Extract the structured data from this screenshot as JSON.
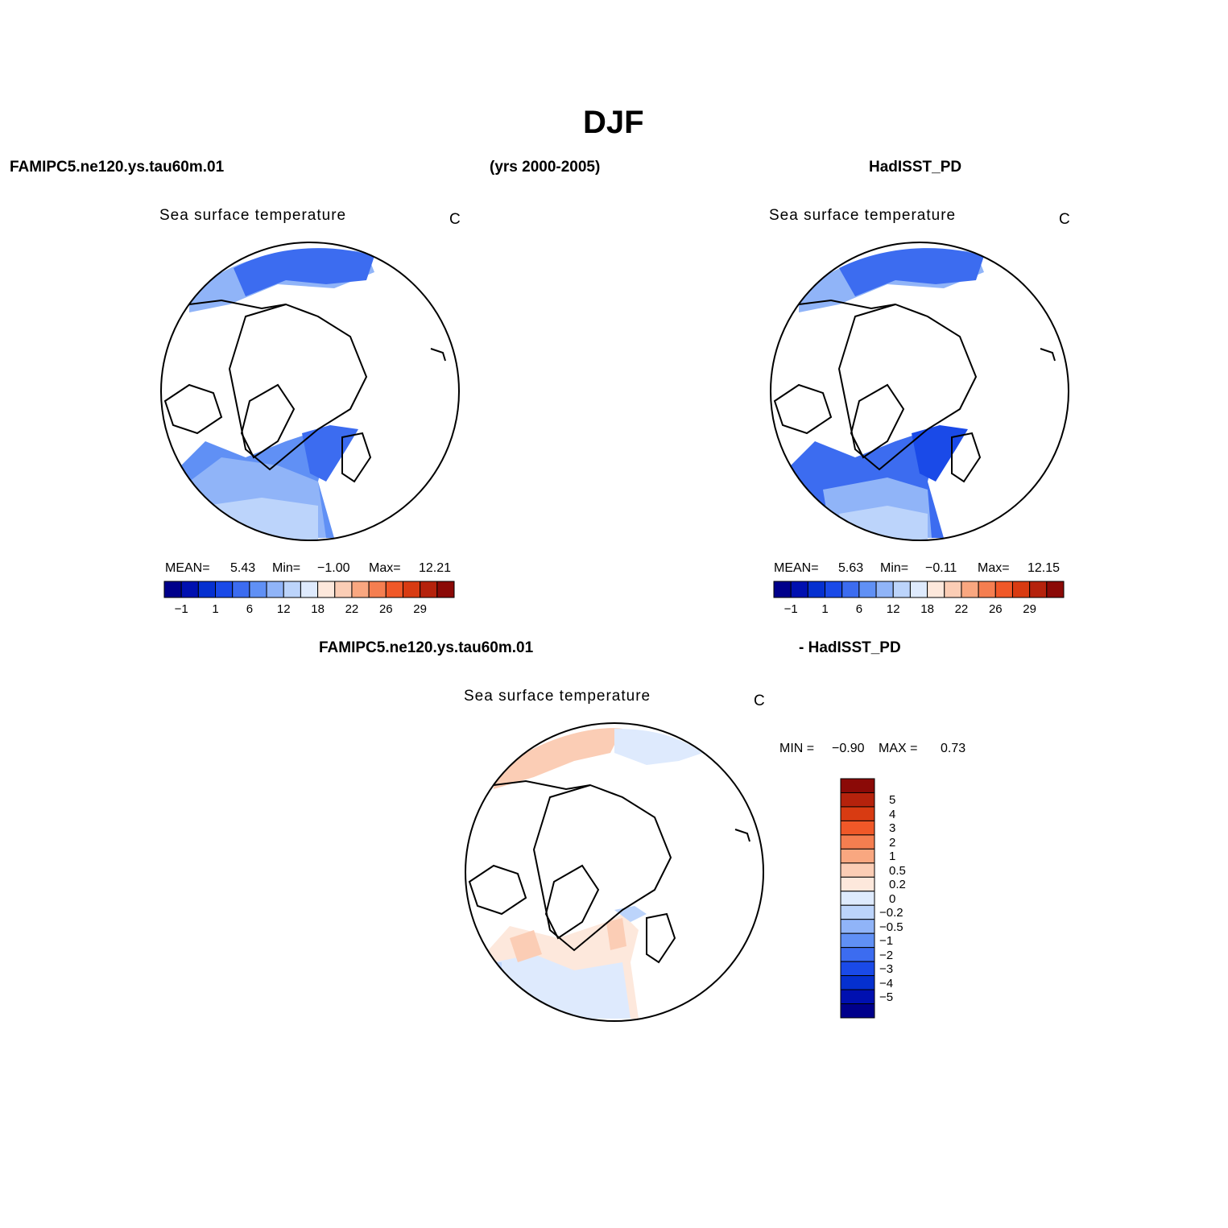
{
  "figure": {
    "title": "DJF",
    "header_left": "FAMIPC5.ne120.ys.tau60m.01",
    "header_center": "(yrs 2000-2005)",
    "header_right": "HadISST_PD",
    "diff_header_left": "FAMIPC5.ne120.ys.tau60m.01",
    "diff_header_right": "- HadISST_PD"
  },
  "panels": [
    {
      "title": "Sea surface temperature",
      "unit": "C",
      "stats": {
        "mean_label": "MEAN=",
        "mean": "5.43",
        "min_label": "Min=",
        "min": "−1.00",
        "max_label": "Max=",
        "max": "12.21"
      }
    },
    {
      "title": "Sea surface temperature",
      "unit": "C",
      "stats": {
        "mean_label": "MEAN=",
        "mean": "5.63",
        "min_label": "Min=",
        "min": "−0.11",
        "max_label": "Max=",
        "max": "12.15"
      }
    }
  ],
  "diff_panel": {
    "title": "Sea surface temperature",
    "unit": "C",
    "min_label": "MIN =",
    "min": "−0.90",
    "max_label": "MAX =",
    "max": "0.73"
  },
  "colorbar": {
    "colors": [
      "#00008b",
      "#0010b0",
      "#0530d0",
      "#1a4ae8",
      "#3c6cf0",
      "#6090f5",
      "#90b4f8",
      "#bcd4fb",
      "#deeafd",
      "#fde8dc",
      "#fbcdb5",
      "#f9a780",
      "#f57e50",
      "#f05828",
      "#d83b12",
      "#b5220c",
      "#8b0a07"
    ],
    "labels": [
      "−1",
      "1",
      "6",
      "12",
      "18",
      "22",
      "26",
      "29"
    ]
  },
  "diff_colorbar": {
    "colors_top_to_bottom": [
      "#8b0a07",
      "#b5220c",
      "#d83b12",
      "#f05828",
      "#f57e50",
      "#f9a780",
      "#fbcdb5",
      "#fde8dc",
      "#deeafd",
      "#bcd4fb",
      "#90b4f8",
      "#6090f5",
      "#3c6cf0",
      "#1a4ae8",
      "#0530d0",
      "#0010b0",
      "#00008b"
    ],
    "labels_top_to_bottom": [
      "5",
      "4",
      "3",
      "2",
      "1",
      "0.5",
      "0.2",
      "0",
      "−0.2",
      "−0.5",
      "−1",
      "−2",
      "−3",
      "−4",
      "−5"
    ]
  }
}
